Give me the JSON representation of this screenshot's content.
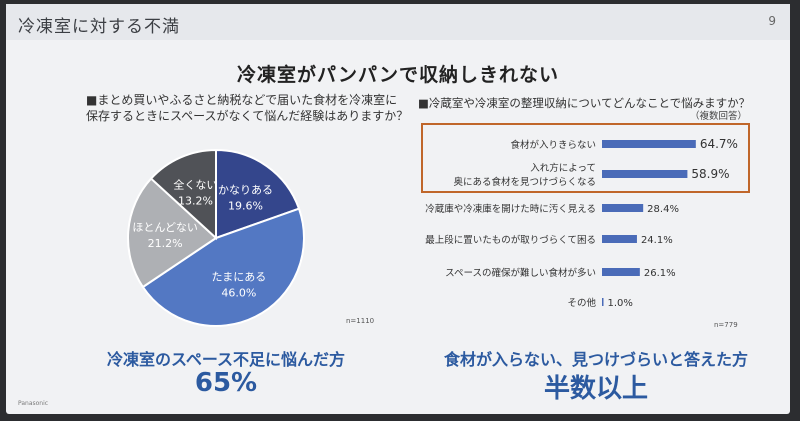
{
  "slide": {
    "title": "冷凍室に対する不満",
    "page_number": "9",
    "headline": "冷凍室がパンパンで収納しきれない",
    "brand": "Panasonic"
  },
  "left_panel": {
    "question_line1": "■まとめ買いやふるさと納税などで届いた食材を冷凍室に",
    "question_line2": "保存するときにスペースがなくて悩んだ経験はありますか？",
    "sample_size": "n=1110",
    "conclusion": "冷凍室のスペース不足に悩んだ方",
    "conclusion_value": "65%"
  },
  "right_panel": {
    "question": "■冷蔵室や冷凍室の整理収納についてどんなことで悩みますか？",
    "note": "（複数回答）",
    "sample_size": "n=779",
    "conclusion": "食材が入らない、見つけづらいと答えた方",
    "conclusion_value": "半数以上"
  },
  "chart_data": [
    {
      "type": "pie",
      "categories": [
        "かなりある",
        "たまにある",
        "ほとんどない",
        "全くない"
      ],
      "values": [
        19.6,
        46.0,
        21.2,
        13.2
      ],
      "value_labels": [
        "19.6%",
        "46.0%",
        "21.2%",
        "13.2%"
      ],
      "colors": [
        "#34468c",
        "#5378c3",
        "#aeb0b4",
        "#505257"
      ],
      "start": "12 o'clock, clockwise"
    },
    {
      "type": "bar",
      "orientation": "horizontal",
      "categories": [
        [
          "食材が入りきらない"
        ],
        [
          "入れ方によって",
          "奥にある食材を見つけづらくなる"
        ],
        [
          "冷蔵庫や冷凍庫を開けた時に汚く見える"
        ],
        [
          "最上段に置いたものが取りづらくて困る"
        ],
        [
          "スペースの確保が難しい食材が多い"
        ],
        [
          "その他"
        ]
      ],
      "values": [
        64.7,
        58.9,
        28.4,
        24.1,
        26.1,
        1.0
      ],
      "value_labels": [
        "64.7%",
        "58.9%",
        "28.4%",
        "24.1%",
        "26.1%",
        "1.0%"
      ],
      "highlighted": [
        0,
        1
      ],
      "bar_color": "#4a6bb8",
      "highlight_border_color": "#c0662a"
    }
  ]
}
